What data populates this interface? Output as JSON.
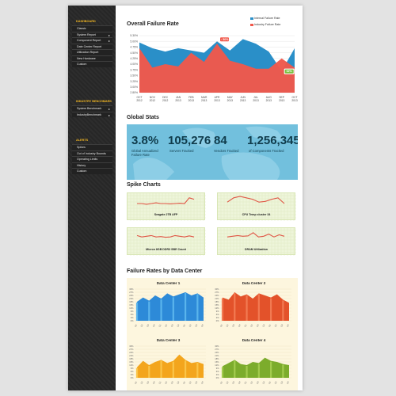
{
  "sidebar": {
    "sections": [
      {
        "title": "DASHBOARD",
        "items": [
          {
            "label": "Classic",
            "chevron": false
          },
          {
            "label": "System Report",
            "chevron": true
          },
          {
            "label": "Component Report",
            "chevron": true
          },
          {
            "label": "Date Center Report",
            "chevron": false
          },
          {
            "label": "Utilization Report",
            "chevron": false
          },
          {
            "label": "New Hardware",
            "chevron": false
          },
          {
            "label": "Custom",
            "chevron": false
          }
        ]
      },
      {
        "title": "INDUSTRY BENCHMARK",
        "items": [
          {
            "label": "System Benchmark",
            "chevron": true
          },
          {
            "label": "IndustryBenchmark",
            "chevron": true
          }
        ]
      },
      {
        "title": "ALERTS",
        "items": [
          {
            "label": "Spikes",
            "chevron": false
          },
          {
            "label": "Out of Industry Bounds",
            "chevron": false
          },
          {
            "label": "Operating Limits",
            "chevron": false
          },
          {
            "label": "History",
            "chevron": false
          },
          {
            "label": "Custom",
            "chevron": false
          }
        ]
      }
    ]
  },
  "failure_rate": {
    "title": "Overall Failure Rate",
    "legend": [
      {
        "label": "Internal Failure Rate",
        "color": "#2a8fc8"
      },
      {
        "label": "Industry Failure Rate",
        "color": "#f0584b"
      }
    ],
    "callouts": [
      {
        "text": "50%",
        "color": "#f0584b"
      },
      {
        "text": "62%",
        "color": "#7cc242"
      }
    ]
  },
  "global_stats": {
    "title": "Global Stats",
    "stats": [
      {
        "value": "3.8%",
        "label_line1": "Global Annualized",
        "label_line2": "Failure Rate"
      },
      {
        "value": "105,276",
        "label_line1": "Servers Tracked",
        "label_line2": ""
      },
      {
        "value": "84",
        "label_line1": "Vendors Tracked",
        "label_line2": ""
      },
      {
        "value": "1,256,345",
        "label_line1": "of Components Tracked",
        "label_line2": ""
      }
    ]
  },
  "spike_charts": {
    "title": "Spike Charts",
    "cards": [
      {
        "label": "Seagate 2TB AFP",
        "values": [
          5,
          5,
          4.5,
          5,
          5.5,
          5,
          5,
          4.8,
          5,
          5.2,
          5,
          9,
          8
        ]
      },
      {
        "label": "CPU Temp cluster 34",
        "values": [
          6,
          9,
          10,
          9,
          8,
          6,
          6.5,
          8,
          9,
          5
        ]
      },
      {
        "label": "Micron 8GB DDR3 SBE Count",
        "values": [
          7,
          6,
          6.5,
          7,
          6,
          6.3,
          5.8,
          6,
          7,
          6.5,
          6,
          6.8,
          6
        ]
      },
      {
        "label": "DRAM Utilization",
        "values": [
          6,
          6.5,
          7,
          6.5,
          6.8,
          9,
          6,
          6.5,
          8,
          6,
          7.5,
          6.5
        ]
      }
    ]
  },
  "data_centers": {
    "title": "Failure Rates by Data Center",
    "centers": [
      {
        "name": "Data Center 1",
        "color": "#2d8ad8",
        "light": "#5ab4ec",
        "values": [
          18,
          22,
          19,
          24,
          21,
          26,
          23,
          25,
          27,
          24,
          26,
          22
        ]
      },
      {
        "name": "Data Center 2",
        "color": "#e3522a",
        "light": "#f27a52",
        "values": [
          22,
          20,
          27,
          23,
          25,
          21,
          26,
          24,
          22,
          25,
          20,
          17
        ]
      },
      {
        "name": "Data Center 3",
        "color": "#f3a51d",
        "light": "#fac449",
        "values": [
          10,
          16,
          12,
          15,
          17,
          14,
          16,
          22,
          17,
          14,
          15,
          13
        ]
      },
      {
        "name": "Data Center 4",
        "color": "#7cac2c",
        "light": "#a3cb4e",
        "values": [
          11,
          14,
          17,
          13,
          12,
          15,
          14,
          19,
          16,
          15,
          13,
          12
        ]
      }
    ]
  },
  "chart_data": [
    {
      "type": "area",
      "title": "Overall Failure Rate",
      "x": [
        "OCT 2012",
        "NOV 2012",
        "DEC 2012",
        "JAN 2013",
        "FEB 2013",
        "MAR 2013",
        "APR 2013",
        "MAY 2013",
        "JUN 2013",
        "JUL 2013",
        "AUG 2013",
        "SEP 2013",
        "OCT 2013"
      ],
      "ylim": [
        2.8,
        5.3
      ],
      "yticks": [
        "5.30%",
        "5.00%",
        "4.75%",
        "4.50%",
        "4.25%",
        "4.00%",
        "3.75%",
        "3.50%",
        "3.25%",
        "3.00%",
        "2.80%"
      ],
      "series": [
        {
          "name": "Internal Failure Rate",
          "values": [
            5.0,
            4.75,
            4.6,
            4.75,
            4.65,
            4.55,
            5.05,
            4.65,
            5.15,
            4.95,
            4.6,
            3.75,
            4.75
          ]
        },
        {
          "name": "Industry Failure Rate",
          "values": [
            4.75,
            3.9,
            4.05,
            3.95,
            4.55,
            4.15,
            4.95,
            4.2,
            4.05,
            3.85,
            3.85,
            4.3,
            3.9
          ]
        }
      ],
      "legend": "top-right",
      "grid": true
    }
  ],
  "dc_yticks": [
    "30%",
    "27%",
    "24%",
    "21%",
    "18%",
    "15%",
    "12%",
    "9%",
    "6%",
    "3%",
    "0%"
  ],
  "dc_xticks": [
    "Q1",
    "Q2",
    "Q3",
    "Q4",
    "Q1",
    "Q2",
    "Q3",
    "Q4",
    "Q1",
    "Q2",
    "Q3",
    "Q4"
  ]
}
